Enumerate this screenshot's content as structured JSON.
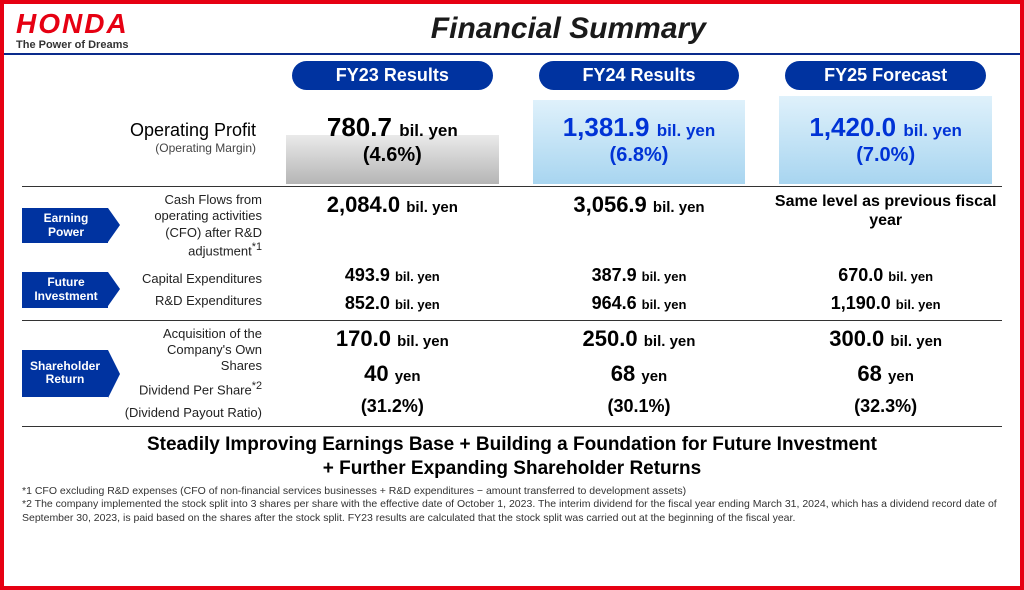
{
  "brand": {
    "logo": "HONDA",
    "tagline": "The Power of Dreams"
  },
  "title": "Financial Summary",
  "columns": {
    "fy23": "FY23 Results",
    "fy24": "FY24 Results",
    "fy25": "FY25 Forecast"
  },
  "operating_profit": {
    "label": "Operating Profit",
    "sublabel": "(Operating Margin)",
    "unit": "bil. yen",
    "fy23": {
      "value": "780.7",
      "margin": "(4.6%)",
      "height_pct": 56,
      "fill_gradient": [
        "#b5b5b5",
        "#eaeaea"
      ],
      "text_color": "#000"
    },
    "fy24": {
      "value": "1,381.9",
      "margin": "(6.8%)",
      "height_pct": 96,
      "fill_gradient": [
        "#a8d5f0",
        "#dff1fb"
      ],
      "text_color": "#0033d6"
    },
    "fy25": {
      "value": "1,420.0",
      "margin": "(7.0%)",
      "height_pct": 100,
      "fill_gradient": [
        "#a8d5f0",
        "#dff1fb"
      ],
      "text_color": "#0033d6"
    }
  },
  "sections": {
    "earning_power": {
      "flag": "Earning\nPower"
    },
    "future_investment": {
      "flag": "Future\nInvestment"
    },
    "shareholder_return": {
      "flag": "Shareholder\nReturn"
    }
  },
  "rows": {
    "cfo": {
      "label": "Cash Flows from operating activities (CFO) after R&D adjustment",
      "sup": "*1",
      "fy23": "2,084.0",
      "fy24": "3,056.9",
      "fy25_text": "Same level as previous fiscal year",
      "unit": "bil. yen"
    },
    "capex": {
      "label": "Capital Expenditures",
      "fy23": "493.9",
      "fy24": "387.9",
      "fy25": "670.0",
      "unit": "bil. yen"
    },
    "rnd": {
      "label": "R&D Expenditures",
      "fy23": "852.0",
      "fy24": "964.6",
      "fy25": "1,190.0",
      "unit": "bil. yen"
    },
    "buyback": {
      "label": "Acquisition of the Company's Own Shares",
      "fy23": "170.0",
      "fy24": "250.0",
      "fy25": "300.0",
      "unit": "bil. yen"
    },
    "dps": {
      "label": "Dividend Per Share",
      "sup": "*2",
      "fy23": "40",
      "fy24": "68",
      "fy25": "68",
      "unit": "yen"
    },
    "payout": {
      "label": "(Dividend Payout Ratio)",
      "fy23": "(31.2%)",
      "fy24": "(30.1%)",
      "fy25": "(32.3%)"
    }
  },
  "summary": {
    "line1": "Steadily Improving Earnings Base + Building a Foundation for Future Investment",
    "line2": "+ Further Expanding Shareholder Returns"
  },
  "footnotes": {
    "f1": "*1 CFO excluding R&D expenses (CFO of non-financial services businesses + R&D expenditures − amount transferred to development assets)",
    "f2": "*2 The company implemented the stock split into 3 shares per share with the effective date of October 1, 2023. The interim dividend for the fiscal year ending March 31, 2024, which has a dividend record date of September 30, 2023, is paid based on the shares after the stock split. FY23 results are calculated that the stock split was carried out at the beginning of the fiscal year."
  },
  "colors": {
    "brand_red": "#e60012",
    "brand_blue": "#0033a0",
    "highlight_blue": "#0033d6"
  }
}
